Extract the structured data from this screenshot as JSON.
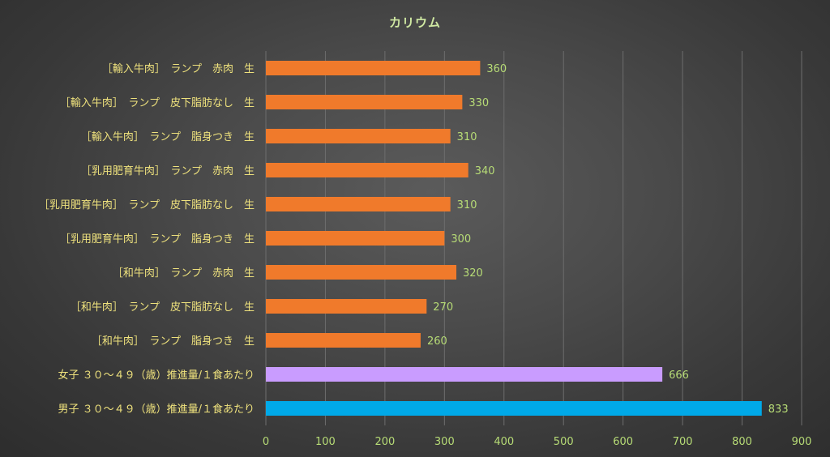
{
  "chart_data": {
    "type": "bar",
    "orientation": "horizontal",
    "title": "カリウム",
    "categories": [
      "［輸入牛肉］　ランプ　赤肉　生",
      "［輸入牛肉］　ランプ　皮下脂肪なし　生",
      "［輸入牛肉］　ランプ　脂身つき　生",
      "［乳用肥育牛肉］　ランプ　赤肉　生",
      "［乳用肥育牛肉］　ランプ　皮下脂肪なし　生",
      "［乳用肥育牛肉］　ランプ　脂身つき　生",
      "［和牛肉］　ランプ　赤肉　生",
      "［和牛肉］　ランプ　皮下脂肪なし　生",
      "［和牛肉］　ランプ　脂身つき　生",
      "女子 ３０～４９（歳）推進量/１食あたり",
      "男子 ３０～４９（歳）推進量/１食あたり"
    ],
    "values": [
      360,
      330,
      310,
      340,
      310,
      300,
      320,
      270,
      260,
      666,
      833
    ],
    "bar_colors": [
      "#f07a2b",
      "#f07a2b",
      "#f07a2b",
      "#f07a2b",
      "#f07a2b",
      "#f07a2b",
      "#f07a2b",
      "#f07a2b",
      "#f07a2b",
      "#c99cff",
      "#00a9e8"
    ],
    "xlim": [
      0,
      900
    ],
    "xticks": [
      0,
      100,
      200,
      300,
      400,
      500,
      600,
      700,
      800,
      900
    ],
    "xtick_labels": [
      "0",
      "100",
      "200",
      "300",
      "400",
      "500",
      "600",
      "700",
      "800",
      "900"
    ],
    "grid": true,
    "legend": false,
    "colors": {
      "title": "#cfe8a2",
      "category_label": "#efe27d",
      "tick_label": "#b7dc76",
      "value_label": "#b7dc76",
      "grid": "#6d6d6d"
    }
  }
}
